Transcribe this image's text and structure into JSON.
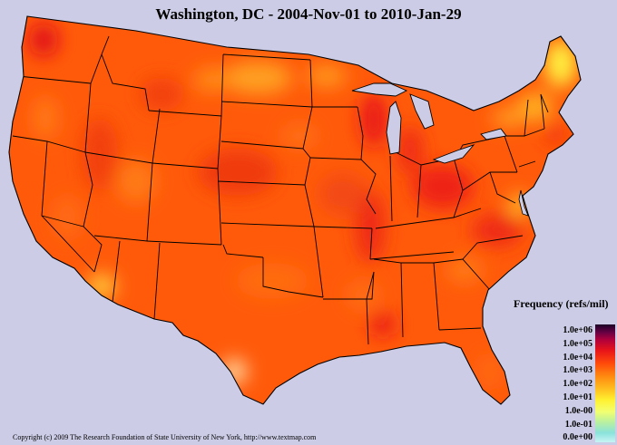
{
  "title": "Washington, DC - 2004-Nov-01 to 2010-Jan-29",
  "legend": {
    "title": "Frequency (refs/mil)",
    "labels": [
      "1.0e+06",
      "1.0e+05",
      "1.0e+04",
      "1.0e+03",
      "1.0e+02",
      "1.0e+01",
      "1.0e-00",
      "1.0e-01",
      "0.0e+00"
    ]
  },
  "copyright": "Copyright (c) 2009 The Research Foundation of State University of New York, http://www.textmap.com",
  "colors": {
    "background": "#cccce6",
    "dominant": "#ff5a0a",
    "hot": "#e8141a",
    "cool": "#ffd030"
  }
}
